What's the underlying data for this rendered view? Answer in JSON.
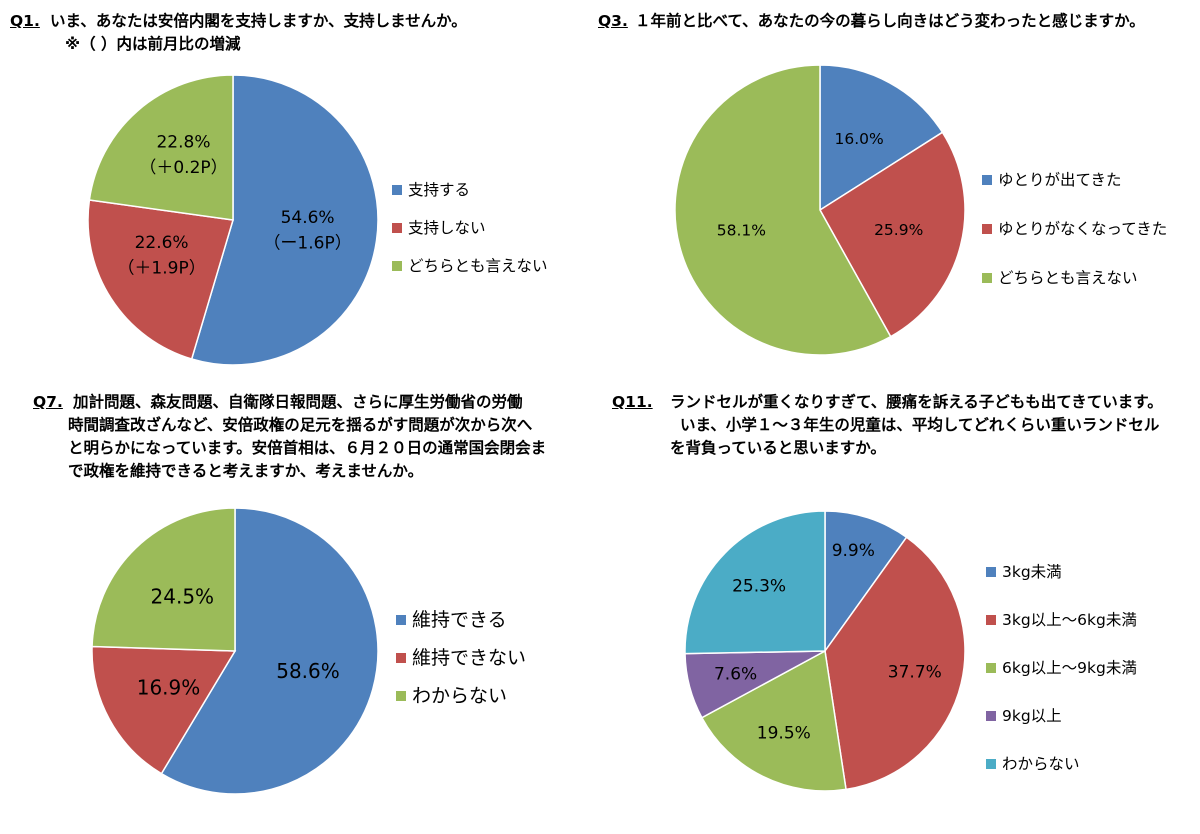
{
  "questions": [
    {
      "number": "Q1.",
      "lines": [
        "いま、あなたは安倍内閣を支持しますか、支持しませんか。",
        "※（ ）内は前月比の増減"
      ]
    },
    {
      "number": "Q3.",
      "lines": [
        "１年前と比べて、あなたの今の暮らし向きはどう変わったと感じますか。"
      ]
    },
    {
      "number": "Q7.",
      "lines": [
        "加計問題、森友問題、自衛隊日報問題、さらに厚生労働省の労働",
        "時間調査改ざんなど、安倍政権の足元を揺るがす問題が次から次へ",
        "と明らかになっています。安倍首相は、６月２０日の通常国会閉会ま",
        "で政権を維持できると考えますか、考えませんか。"
      ]
    },
    {
      "number": "Q11.",
      "lines": [
        "ランドセルが重くなりすぎて、腰痛を訴える子どもも出てきています。",
        "いま、小学１～３年生の児童は、平均してどれくらい重いランドセル",
        "を背負っていると思いますか。"
      ]
    }
  ],
  "chart_data": [
    {
      "type": "pie",
      "question": "Q1.",
      "slices": [
        {
          "label": "支持する",
          "value": 54.6,
          "value_label": "54.6%",
          "change_label": "（ー1.6P）",
          "color": "#4f81bd"
        },
        {
          "label": "支持しない",
          "value": 22.6,
          "value_label": "22.6%",
          "change_label": "（＋1.9P）",
          "color": "#c0504d"
        },
        {
          "label": "どちらとも言えない",
          "value": 22.8,
          "value_label": "22.8%",
          "change_label": "（＋0.2P）",
          "color": "#9bbb59"
        }
      ],
      "legend_position": "right"
    },
    {
      "type": "pie",
      "question": "Q3.",
      "slices": [
        {
          "label": "ゆとりが出てきた",
          "value": 16.0,
          "value_label": "16.0%",
          "color": "#4f81bd"
        },
        {
          "label": "ゆとりがなくなってきた",
          "value": 25.9,
          "value_label": "25.9%",
          "color": "#c0504d"
        },
        {
          "label": "どちらとも言えない",
          "value": 58.1,
          "value_label": "58.1%",
          "color": "#9bbb59"
        }
      ],
      "legend_position": "right"
    },
    {
      "type": "pie",
      "question": "Q7.",
      "slices": [
        {
          "label": "維持できる",
          "value": 58.6,
          "value_label": "58.6%",
          "color": "#4f81bd"
        },
        {
          "label": "維持できない",
          "value": 16.9,
          "value_label": "16.9%",
          "color": "#c0504d"
        },
        {
          "label": "わからない",
          "value": 24.5,
          "value_label": "24.5%",
          "color": "#9bbb59"
        }
      ],
      "legend_position": "right"
    },
    {
      "type": "pie",
      "question": "Q11.",
      "slices": [
        {
          "label": "3kg未満",
          "value": 9.9,
          "value_label": "9.9%",
          "color": "#4f81bd"
        },
        {
          "label": "3kg以上～6kg未満",
          "value": 37.7,
          "value_label": "37.7%",
          "color": "#c0504d"
        },
        {
          "label": "6kg以上～9kg未満",
          "value": 19.5,
          "value_label": "19.5%",
          "color": "#9bbb59"
        },
        {
          "label": "9kg以上",
          "value": 7.6,
          "value_label": "7.6%",
          "color": "#8064a2"
        },
        {
          "label": "わからない",
          "value": 25.3,
          "value_label": "25.3%",
          "color": "#4bacc6"
        }
      ],
      "legend_position": "right"
    }
  ]
}
